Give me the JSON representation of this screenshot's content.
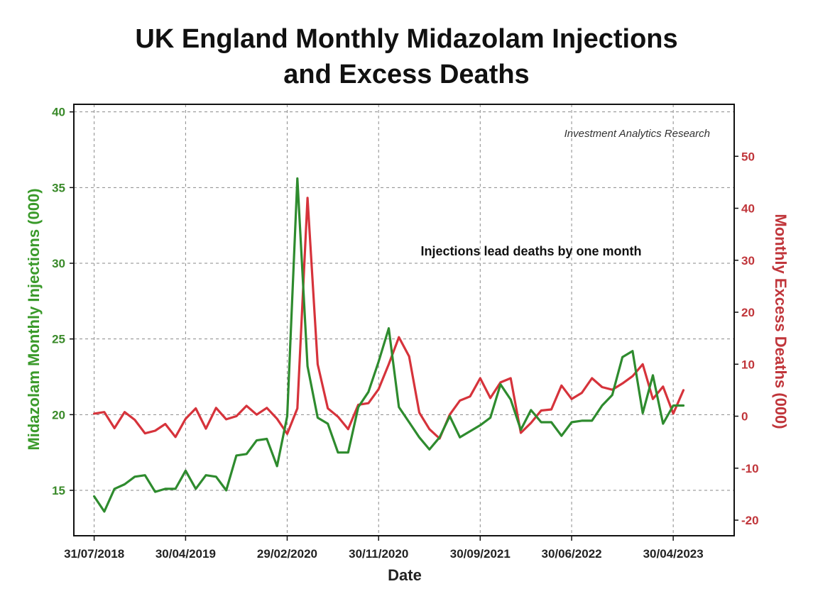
{
  "title_line1": "UK England Monthly Midazolam Injections",
  "title_line2": "and Excess Deaths",
  "chart_data": {
    "type": "line",
    "xlabel": "Date",
    "ylabel_left": "Midazolam Monthly Injections (000)",
    "ylabel_right": "Monthly Excess Deaths (000)",
    "x_tick_labels": [
      "31/07/2018",
      "30/04/2019",
      "29/02/2020",
      "30/11/2020",
      "30/09/2021",
      "30/06/2022",
      "30/04/2023"
    ],
    "x_tick_months": [
      "2018-07",
      "2019-04",
      "2020-02",
      "2020-11",
      "2021-09",
      "2022-06",
      "2023-04"
    ],
    "xlim": [
      "2018-05",
      "2023-10"
    ],
    "y_left_ticks": [
      15,
      20,
      25,
      30,
      35,
      40
    ],
    "y_left_lim": [
      12.0,
      40.5
    ],
    "y_right_ticks": [
      -20,
      -10,
      0,
      10,
      20,
      30,
      40,
      50
    ],
    "y_right_lim": [
      -23.0,
      60.0
    ],
    "grid": true,
    "colors": {
      "injections": "#2e8b2e",
      "deaths": "#d6333b",
      "left_axis": "#3a8a2a",
      "right_axis": "#c0353a"
    },
    "watermark": "Investment Analytics Research",
    "annotation": "Injections lead deaths by one month",
    "series": [
      {
        "axis": "left",
        "months": [
          "2018-07",
          "2018-08",
          "2018-09",
          "2018-10",
          "2018-11",
          "2018-12",
          "2019-01",
          "2019-02",
          "2019-03",
          "2019-04",
          "2019-05",
          "2019-06",
          "2019-07",
          "2019-08",
          "2019-09",
          "2019-10",
          "2019-11",
          "2019-12",
          "2020-01",
          "2020-02",
          "2020-03",
          "2020-04",
          "2020-05",
          "2020-06",
          "2020-07",
          "2020-08",
          "2020-09",
          "2020-10",
          "2020-11",
          "2020-12",
          "2021-01",
          "2021-02",
          "2021-03",
          "2021-04",
          "2021-05",
          "2021-06",
          "2021-07",
          "2021-08",
          "2021-09",
          "2021-10",
          "2021-11",
          "2021-12",
          "2022-01",
          "2022-02",
          "2022-03",
          "2022-04",
          "2022-05",
          "2022-06",
          "2022-07",
          "2022-08",
          "2022-09",
          "2022-10",
          "2022-11",
          "2022-12",
          "2023-01",
          "2023-02",
          "2023-03",
          "2023-04",
          "2023-05"
        ],
        "values": [
          14.6,
          13.6,
          15.1,
          15.4,
          15.9,
          16.0,
          14.9,
          15.1,
          15.1,
          16.3,
          15.1,
          16.0,
          15.9,
          15.0,
          17.3,
          17.4,
          18.3,
          18.4,
          16.6,
          19.9,
          35.6,
          23.2,
          19.8,
          19.4,
          17.5,
          17.5,
          20.5,
          21.5,
          23.5,
          25.7,
          20.5,
          19.5,
          18.5,
          17.7,
          18.5,
          19.9,
          18.5,
          18.9,
          19.3,
          19.8,
          22.0,
          21.0,
          19.0,
          20.3,
          19.5,
          19.5,
          18.6,
          19.5,
          19.6,
          19.6,
          20.6,
          21.3,
          23.8,
          24.2,
          20.1,
          22.6,
          19.4,
          20.6,
          20.6
        ]
      },
      {
        "axis": "right",
        "months": [
          "2018-07",
          "2018-08",
          "2018-09",
          "2018-10",
          "2018-11",
          "2018-12",
          "2019-01",
          "2019-02",
          "2019-03",
          "2019-04",
          "2019-05",
          "2019-06",
          "2019-07",
          "2019-08",
          "2019-09",
          "2019-10",
          "2019-11",
          "2019-12",
          "2020-01",
          "2020-02",
          "2020-03",
          "2020-04",
          "2020-05",
          "2020-06",
          "2020-07",
          "2020-08",
          "2020-09",
          "2020-10",
          "2020-11",
          "2020-12",
          "2021-01",
          "2021-02",
          "2021-03",
          "2021-04",
          "2021-05",
          "2021-06",
          "2021-07",
          "2021-08",
          "2021-09",
          "2021-10",
          "2021-11",
          "2021-12",
          "2022-01",
          "2022-02",
          "2022-03",
          "2022-04",
          "2022-05",
          "2022-06",
          "2022-07",
          "2022-08",
          "2022-09",
          "2022-10",
          "2022-11",
          "2022-12",
          "2023-01",
          "2023-02",
          "2023-03",
          "2023-04",
          "2023-05"
        ],
        "values": [
          0.5,
          0.8,
          -2.3,
          0.8,
          -0.7,
          -3.3,
          -2.8,
          -1.5,
          -4.0,
          -0.5,
          1.5,
          -2.4,
          1.6,
          -0.6,
          0.0,
          2.0,
          0.3,
          1.6,
          -0.5,
          -3.4,
          1.5,
          42.0,
          10.0,
          1.5,
          -0.1,
          -2.5,
          2.2,
          2.5,
          5.2,
          10.0,
          15.2,
          11.5,
          0.7,
          -2.5,
          -4.3,
          0.3,
          3.0,
          3.8,
          7.3,
          3.5,
          6.5,
          7.3,
          -3.2,
          -1.3,
          1.1,
          1.3,
          5.9,
          3.3,
          4.5,
          7.3,
          5.6,
          5.1,
          6.3,
          7.7,
          10.0,
          3.3,
          5.7,
          0.5,
          5.0
        ]
      }
    ]
  }
}
